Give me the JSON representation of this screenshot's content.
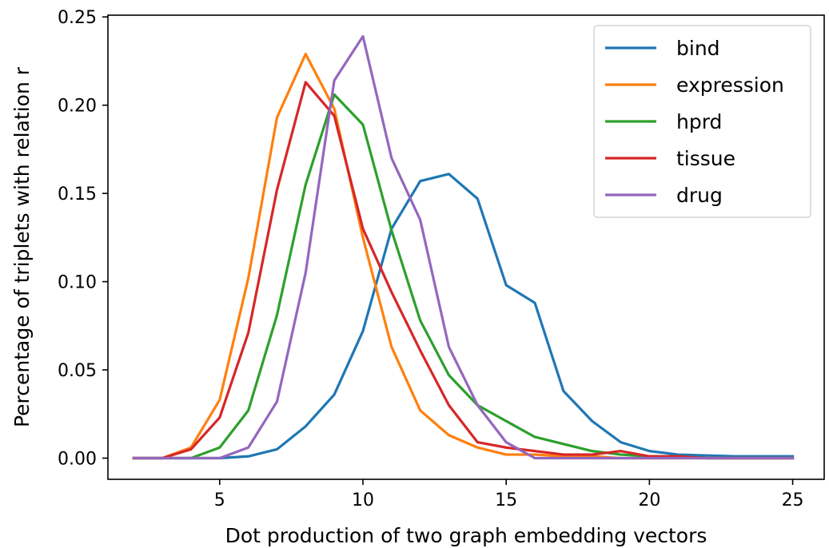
{
  "chart_data": {
    "type": "line",
    "xlabel": "Dot production of two graph embedding vectors",
    "ylabel": "Percentage of triplets with relation r",
    "xlim": [
      1.1,
      26.1
    ],
    "ylim": [
      -0.012,
      0.251
    ],
    "xticks": [
      5,
      10,
      15,
      20,
      25
    ],
    "yticks": [
      0.0,
      0.05,
      0.1,
      0.15,
      0.2,
      0.25
    ],
    "xtick_labels": [
      "5",
      "10",
      "15",
      "20",
      "25"
    ],
    "ytick_labels": [
      "0.00",
      "0.05",
      "0.10",
      "0.15",
      "0.20",
      "0.25"
    ],
    "grid": false,
    "legend_position": "top-right",
    "x": [
      2,
      3,
      4,
      5,
      6,
      7,
      8,
      9,
      10,
      11,
      12,
      13,
      14,
      15,
      16,
      17,
      18,
      19,
      20,
      21,
      22,
      23,
      24,
      25
    ],
    "series": [
      {
        "name": "bind",
        "color": "#1f77b4",
        "values": [
          0.0,
          0.0,
          0.0,
          0.0,
          0.001,
          0.005,
          0.018,
          0.036,
          0.072,
          0.13,
          0.157,
          0.161,
          0.147,
          0.098,
          0.088,
          0.038,
          0.021,
          0.009,
          0.004,
          0.002,
          0.0015,
          0.001,
          0.001,
          0.001
        ]
      },
      {
        "name": "expression",
        "color": "#ff7f0e",
        "values": [
          0.0,
          0.0,
          0.006,
          0.033,
          0.102,
          0.193,
          0.229,
          0.198,
          0.125,
          0.063,
          0.027,
          0.013,
          0.006,
          0.002,
          0.002,
          0.001,
          0.001,
          0.0,
          0.0,
          0.0,
          0.0,
          0.0,
          0.0,
          0.0
        ]
      },
      {
        "name": "hprd",
        "color": "#2ca02c",
        "values": [
          0.0,
          0.0,
          0.0,
          0.006,
          0.027,
          0.081,
          0.155,
          0.206,
          0.189,
          0.129,
          0.078,
          0.047,
          0.03,
          0.021,
          0.012,
          0.008,
          0.004,
          0.002,
          0.001,
          0.001,
          0.0,
          0.0,
          0.0,
          0.0
        ]
      },
      {
        "name": "tissue",
        "color": "#d62728",
        "values": [
          0.0,
          0.0,
          0.005,
          0.023,
          0.071,
          0.152,
          0.213,
          0.194,
          0.13,
          0.094,
          0.061,
          0.03,
          0.009,
          0.006,
          0.004,
          0.002,
          0.002,
          0.004,
          0.001,
          0.001,
          0.0,
          0.0,
          0.0,
          0.0
        ]
      },
      {
        "name": "drug",
        "color": "#9467bd",
        "values": [
          0.0,
          0.0,
          0.0,
          0.0,
          0.006,
          0.032,
          0.105,
          0.214,
          0.239,
          0.17,
          0.135,
          0.063,
          0.03,
          0.009,
          0.0,
          0.0,
          0.0,
          0.0,
          0.0,
          0.0,
          0.0,
          0.0,
          0.0,
          0.0
        ]
      }
    ]
  }
}
